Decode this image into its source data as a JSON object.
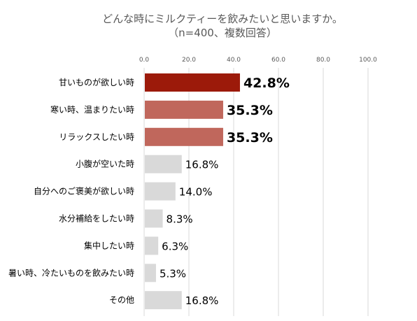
{
  "chart_data": {
    "type": "bar",
    "orientation": "horizontal",
    "title": "どんな時にミルクティーを飲みたいと思いますか。",
    "subtitle": "（n=400、複数回答）",
    "categories": [
      "甘いものが欲しい時",
      "寒い時、温まりたい時",
      "リラックスしたい時",
      "小腹が空いた時",
      "自分へのご褒美が欲しい時",
      "水分補給をしたい時",
      "集中したい時",
      "暑い時、冷たいものを飲みたい時",
      "その他"
    ],
    "values": [
      42.8,
      35.3,
      35.3,
      16.8,
      14.0,
      8.3,
      6.3,
      5.3,
      16.8
    ],
    "value_labels": [
      "42.8%",
      "35.3%",
      "35.3%",
      "16.8%",
      "14.0%",
      "8.3%",
      "6.3%",
      "5.3%",
      "16.8%"
    ],
    "xlim": [
      0,
      100
    ],
    "xticks": [
      0,
      20,
      40,
      60,
      80,
      100
    ],
    "xtick_labels": [
      "0.0",
      "20.0",
      "40.0",
      "60.0",
      "80.0",
      "100.0"
    ],
    "axis_position": "top",
    "grid": true,
    "colors": {
      "top1": "#9C1A0A",
      "top2": "#C0675C",
      "other": "#D9D9D9",
      "grid": "#D9D9D9"
    }
  }
}
